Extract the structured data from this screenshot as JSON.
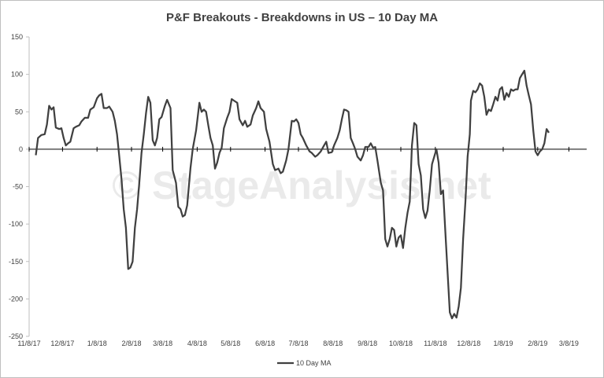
{
  "chart_data": {
    "type": "line",
    "title": "P&F Breakouts - Breakdowns in US – 10 Day MA",
    "xlabel": "",
    "ylabel": "",
    "ylim": [
      -250,
      150
    ],
    "yticks": [
      150,
      100,
      50,
      0,
      -50,
      -100,
      -150,
      -200,
      -250
    ],
    "x_tick_labels": [
      "11/8/17",
      "12/8/17",
      "1/8/18",
      "2/8/18",
      "3/8/18",
      "4/8/18",
      "5/8/18",
      "6/8/18",
      "7/8/18",
      "8/8/18",
      "9/8/18",
      "10/8/18",
      "11/8/18",
      "12/8/18",
      "1/8/19",
      "2/8/19",
      "3/8/19"
    ],
    "grid": false,
    "legend_position": "bottom",
    "series": [
      {
        "name": "10 Day MA",
        "color": "#404040",
        "points": [
          [
            "2017-11-14",
            -8
          ],
          [
            "2017-11-16",
            15
          ],
          [
            "2017-11-19",
            19
          ],
          [
            "2017-11-22",
            20
          ],
          [
            "2017-11-24",
            33
          ],
          [
            "2017-11-26",
            58
          ],
          [
            "2017-11-28",
            53
          ],
          [
            "2017-11-30",
            56
          ],
          [
            "2017-12-02",
            29
          ],
          [
            "2017-12-05",
            27
          ],
          [
            "2017-12-07",
            28
          ],
          [
            "2017-12-09",
            15
          ],
          [
            "2017-12-11",
            5
          ],
          [
            "2017-12-13",
            8
          ],
          [
            "2017-12-15",
            10
          ],
          [
            "2017-12-18",
            28
          ],
          [
            "2017-12-20",
            30
          ],
          [
            "2017-12-23",
            32
          ],
          [
            "2017-12-25",
            37
          ],
          [
            "2017-12-28",
            42
          ],
          [
            "2017-12-31",
            42
          ],
          [
            "2018-01-02",
            53
          ],
          [
            "2018-01-05",
            56
          ],
          [
            "2018-01-08",
            68
          ],
          [
            "2018-01-10",
            72
          ],
          [
            "2018-01-12",
            74
          ],
          [
            "2018-01-14",
            55
          ],
          [
            "2018-01-17",
            55
          ],
          [
            "2018-01-19",
            57
          ],
          [
            "2018-01-22",
            50
          ],
          [
            "2018-01-24",
            38
          ],
          [
            "2018-01-26",
            20
          ],
          [
            "2018-01-28",
            -10
          ],
          [
            "2018-01-30",
            -40
          ],
          [
            "2018-02-01",
            -80
          ],
          [
            "2018-02-03",
            -105
          ],
          [
            "2018-02-05",
            -160
          ],
          [
            "2018-02-07",
            -158
          ],
          [
            "2018-02-09",
            -150
          ],
          [
            "2018-02-11",
            -105
          ],
          [
            "2018-02-13",
            -80
          ],
          [
            "2018-02-15",
            -45
          ],
          [
            "2018-02-17",
            -5
          ],
          [
            "2018-02-19",
            20
          ],
          [
            "2018-02-21",
            48
          ],
          [
            "2018-02-23",
            70
          ],
          [
            "2018-02-25",
            62
          ],
          [
            "2018-02-27",
            12
          ],
          [
            "2018-03-01",
            5
          ],
          [
            "2018-03-03",
            15
          ],
          [
            "2018-03-05",
            40
          ],
          [
            "2018-03-07",
            43
          ],
          [
            "2018-03-10",
            58
          ],
          [
            "2018-03-12",
            66
          ],
          [
            "2018-03-15",
            55
          ],
          [
            "2018-03-17",
            -28
          ],
          [
            "2018-03-20",
            -45
          ],
          [
            "2018-03-22",
            -77
          ],
          [
            "2018-03-24",
            -80
          ],
          [
            "2018-03-26",
            -90
          ],
          [
            "2018-03-28",
            -88
          ],
          [
            "2018-03-30",
            -75
          ],
          [
            "2018-04-02",
            -25
          ],
          [
            "2018-04-04",
            0
          ],
          [
            "2018-04-07",
            25
          ],
          [
            "2018-04-10",
            62
          ],
          [
            "2018-04-12",
            50
          ],
          [
            "2018-04-14",
            53
          ],
          [
            "2018-04-16",
            50
          ],
          [
            "2018-04-18",
            32
          ],
          [
            "2018-04-20",
            15
          ],
          [
            "2018-04-22",
            5
          ],
          [
            "2018-04-24",
            -26
          ],
          [
            "2018-04-26",
            -18
          ],
          [
            "2018-04-28",
            -5
          ],
          [
            "2018-04-30",
            2
          ],
          [
            "2018-05-02",
            28
          ],
          [
            "2018-05-05",
            42
          ],
          [
            "2018-05-07",
            50
          ],
          [
            "2018-05-09",
            67
          ],
          [
            "2018-05-11",
            65
          ],
          [
            "2018-05-14",
            62
          ],
          [
            "2018-05-16",
            40
          ],
          [
            "2018-05-19",
            32
          ],
          [
            "2018-05-21",
            38
          ],
          [
            "2018-05-23",
            30
          ],
          [
            "2018-05-26",
            33
          ],
          [
            "2018-05-28",
            45
          ],
          [
            "2018-05-31",
            55
          ],
          [
            "2018-06-02",
            64
          ],
          [
            "2018-06-04",
            55
          ],
          [
            "2018-06-07",
            50
          ],
          [
            "2018-06-09",
            27
          ],
          [
            "2018-06-12",
            10
          ],
          [
            "2018-06-15",
            -20
          ],
          [
            "2018-06-17",
            -28
          ],
          [
            "2018-06-20",
            -26
          ],
          [
            "2018-06-22",
            -32
          ],
          [
            "2018-06-24",
            -30
          ],
          [
            "2018-06-27",
            -15
          ],
          [
            "2018-06-29",
            0
          ],
          [
            "2018-07-02",
            38
          ],
          [
            "2018-07-04",
            37
          ],
          [
            "2018-07-06",
            40
          ],
          [
            "2018-07-08",
            35
          ],
          [
            "2018-07-10",
            20
          ],
          [
            "2018-07-12",
            15
          ],
          [
            "2018-07-15",
            5
          ],
          [
            "2018-07-18",
            -3
          ],
          [
            "2018-07-20",
            -5
          ],
          [
            "2018-07-23",
            -10
          ],
          [
            "2018-07-25",
            -8
          ],
          [
            "2018-07-28",
            -3
          ],
          [
            "2018-07-31",
            5
          ],
          [
            "2018-08-02",
            10
          ],
          [
            "2018-08-04",
            -5
          ],
          [
            "2018-08-07",
            -4
          ],
          [
            "2018-08-09",
            5
          ],
          [
            "2018-08-12",
            15
          ],
          [
            "2018-08-14",
            25
          ],
          [
            "2018-08-16",
            40
          ],
          [
            "2018-08-18",
            53
          ],
          [
            "2018-08-20",
            52
          ],
          [
            "2018-08-22",
            50
          ],
          [
            "2018-08-24",
            15
          ],
          [
            "2018-08-26",
            8
          ],
          [
            "2018-08-28",
            0
          ],
          [
            "2018-08-30",
            -10
          ],
          [
            "2018-09-02",
            -15
          ],
          [
            "2018-09-04",
            -8
          ],
          [
            "2018-09-06",
            3
          ],
          [
            "2018-09-09",
            3
          ],
          [
            "2018-09-11",
            8
          ],
          [
            "2018-09-13",
            2
          ],
          [
            "2018-09-15",
            3
          ],
          [
            "2018-09-17",
            -15
          ],
          [
            "2018-09-20",
            -45
          ],
          [
            "2018-09-22",
            -55
          ],
          [
            "2018-09-24",
            -120
          ],
          [
            "2018-09-26",
            -130
          ],
          [
            "2018-09-28",
            -120
          ],
          [
            "2018-09-30",
            -105
          ],
          [
            "2018-10-02",
            -108
          ],
          [
            "2018-10-04",
            -130
          ],
          [
            "2018-10-06",
            -118
          ],
          [
            "2018-10-08",
            -115
          ],
          [
            "2018-10-10",
            -132
          ],
          [
            "2018-10-12",
            -105
          ],
          [
            "2018-10-14",
            -85
          ],
          [
            "2018-10-16",
            -70
          ],
          [
            "2018-10-18",
            5
          ],
          [
            "2018-10-20",
            35
          ],
          [
            "2018-10-22",
            32
          ],
          [
            "2018-10-24",
            -20
          ],
          [
            "2018-10-26",
            -35
          ],
          [
            "2018-10-28",
            -80
          ],
          [
            "2018-10-30",
            -92
          ],
          [
            "2018-11-01",
            -82
          ],
          [
            "2018-11-03",
            -55
          ],
          [
            "2018-11-05",
            -20
          ],
          [
            "2018-11-07",
            -10
          ],
          [
            "2018-11-09",
            0
          ],
          [
            "2018-11-11",
            -18
          ],
          [
            "2018-11-13",
            -60
          ],
          [
            "2018-11-15",
            -55
          ],
          [
            "2018-11-17",
            -110
          ],
          [
            "2018-11-19",
            -165
          ],
          [
            "2018-11-21",
            -218
          ],
          [
            "2018-11-23",
            -226
          ],
          [
            "2018-11-25",
            -220
          ],
          [
            "2018-11-27",
            -225
          ],
          [
            "2018-11-29",
            -210
          ],
          [
            "2018-12-01",
            -185
          ],
          [
            "2018-12-03",
            -120
          ],
          [
            "2018-12-05",
            -70
          ],
          [
            "2018-12-07",
            -10
          ],
          [
            "2018-12-09",
            20
          ],
          [
            "2018-12-10",
            65
          ],
          [
            "2018-12-12",
            78
          ],
          [
            "2018-12-14",
            76
          ],
          [
            "2018-12-16",
            80
          ],
          [
            "2018-12-18",
            88
          ],
          [
            "2018-12-20",
            85
          ],
          [
            "2018-12-22",
            70
          ],
          [
            "2018-12-24",
            46
          ],
          [
            "2018-12-26",
            53
          ],
          [
            "2018-12-28",
            51
          ],
          [
            "2018-12-30",
            60
          ],
          [
            "2019-01-01",
            70
          ],
          [
            "2019-01-03",
            65
          ],
          [
            "2019-01-05",
            80
          ],
          [
            "2019-01-07",
            83
          ],
          [
            "2019-01-09",
            66
          ],
          [
            "2019-01-11",
            75
          ],
          [
            "2019-01-13",
            70
          ],
          [
            "2019-01-15",
            80
          ],
          [
            "2019-01-17",
            78
          ],
          [
            "2019-01-19",
            80
          ],
          [
            "2019-01-21",
            80
          ],
          [
            "2019-01-23",
            95
          ],
          [
            "2019-01-25",
            100
          ],
          [
            "2019-01-27",
            105
          ],
          [
            "2019-01-29",
            85
          ],
          [
            "2019-01-31",
            72
          ],
          [
            "2019-02-02",
            60
          ],
          [
            "2019-02-04",
            25
          ],
          [
            "2019-02-06",
            -3
          ],
          [
            "2019-02-08",
            -8
          ],
          [
            "2019-02-10",
            -3
          ],
          [
            "2019-02-12",
            0
          ],
          [
            "2019-02-14",
            8
          ],
          [
            "2019-02-16",
            27
          ],
          [
            "2019-02-18",
            22
          ]
        ]
      }
    ]
  },
  "watermark": "© StageAnalysis.net"
}
